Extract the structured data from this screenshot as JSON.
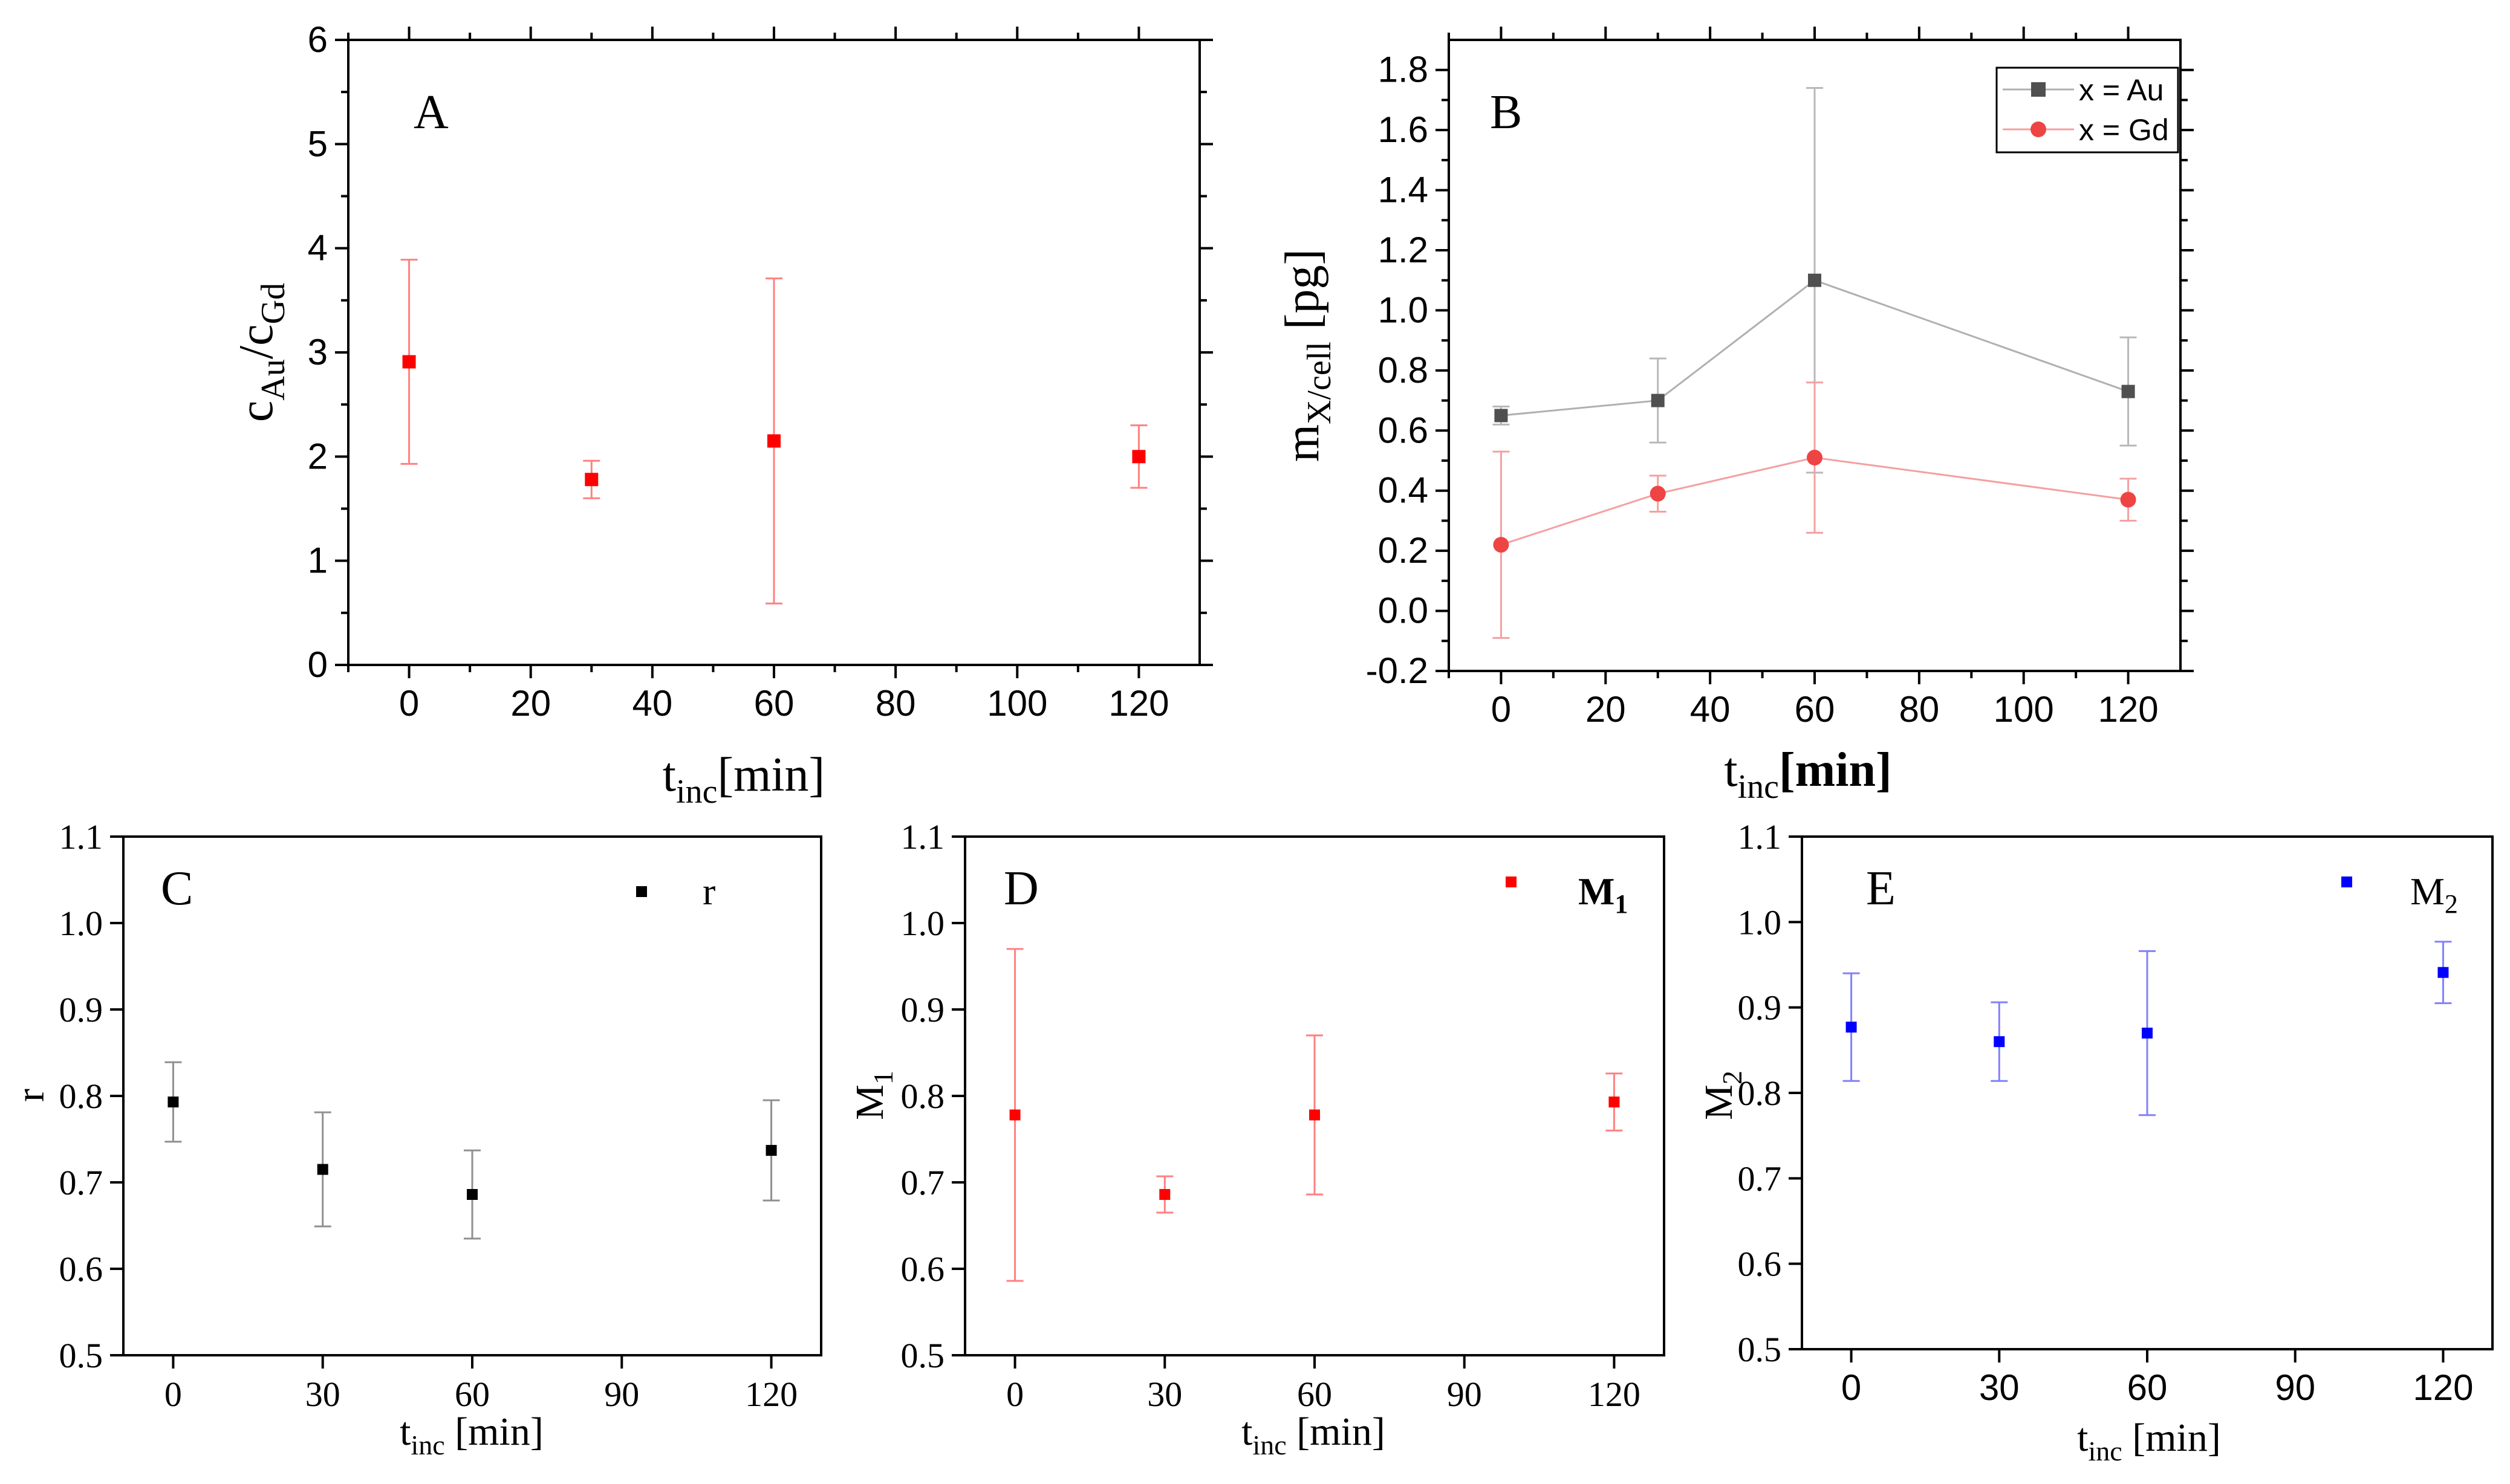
{
  "chart_data": [
    {
      "panel": "A",
      "type": "scatter",
      "xlabel": {
        "main": "t",
        "sub": "inc",
        "rest": "[min]"
      },
      "ylabel": {
        "parts": [
          {
            "t": "c"
          },
          {
            "t": "Au",
            "sub": true
          },
          {
            "t": "/c"
          },
          {
            "t": "Gd",
            "sub": true
          }
        ]
      },
      "xlim": [
        -10,
        130
      ],
      "ylim": [
        0,
        6
      ],
      "xticks": [
        0,
        20,
        40,
        60,
        80,
        100,
        120
      ],
      "yticks": [
        0,
        1,
        2,
        3,
        4,
        5,
        6
      ],
      "series": [
        {
          "color": "#ff0000",
          "errorColor": "#ff8080",
          "marker": "square",
          "line": false,
          "x": [
            0,
            30,
            60,
            120
          ],
          "y": [
            2.91,
            1.78,
            2.15,
            2.0
          ],
          "err": [
            0.98,
            0.18,
            1.56,
            0.3
          ]
        }
      ]
    },
    {
      "panel": "B",
      "type": "line",
      "xlabel": {
        "main": "t",
        "sub": "inc",
        "rest": "[min]"
      },
      "ylabel": {
        "parts": [
          {
            "t": "m"
          },
          {
            "t": "X/cell",
            "sub": true
          },
          {
            "t": " [pg]"
          }
        ]
      },
      "xlim": [
        -10,
        130
      ],
      "ylim": [
        -0.2,
        1.9
      ],
      "xticks": [
        0,
        20,
        40,
        60,
        80,
        100,
        120
      ],
      "yticks": [
        -0.2,
        0.0,
        0.2,
        0.4,
        0.6,
        0.8,
        1.0,
        1.2,
        1.4,
        1.6,
        1.8
      ],
      "legend": {
        "position": "top-right"
      },
      "series": [
        {
          "name": "x = Au",
          "color": "#505050",
          "lineColor": "#b0b0b0",
          "errorColor": "#b8b8b8",
          "marker": "square",
          "line": true,
          "x": [
            0,
            30,
            60,
            120
          ],
          "y": [
            0.65,
            0.7,
            1.1,
            0.73
          ],
          "err": [
            0.03,
            0.14,
            0.64,
            0.18
          ]
        },
        {
          "name": "x = Gd",
          "color": "#ee4444",
          "lineColor": "#f4a0a0",
          "errorColor": "#f4a0a0",
          "marker": "circle",
          "line": true,
          "x": [
            0,
            30,
            60,
            120
          ],
          "y": [
            0.22,
            0.39,
            0.51,
            0.37
          ],
          "err": [
            0.31,
            0.06,
            0.25,
            0.07
          ]
        }
      ]
    },
    {
      "panel": "C",
      "type": "scatter",
      "xlabel": {
        "main": "t",
        "sub": "inc",
        "rest": " [min]"
      },
      "ylabel": {
        "parts": [
          {
            "t": "r"
          }
        ]
      },
      "xlim": [
        -10,
        130
      ],
      "ylim": [
        0.5,
        1.1
      ],
      "xticks": [
        0,
        30,
        60,
        90,
        120
      ],
      "yticks": [
        0.5,
        0.6,
        0.7,
        0.8,
        0.9,
        1.0,
        1.1
      ],
      "legend": {
        "position": "top-right"
      },
      "series": [
        {
          "name": "r",
          "color": "#000000",
          "errorColor": "#909090",
          "marker": "square",
          "line": false,
          "x": [
            0,
            30,
            60,
            120
          ],
          "y": [
            0.793,
            0.715,
            0.686,
            0.737
          ],
          "err": [
            0.046,
            0.066,
            0.051,
            0.058
          ]
        }
      ]
    },
    {
      "panel": "D",
      "type": "scatter",
      "xlabel": {
        "main": "t",
        "sub": "inc",
        "rest": " [min]"
      },
      "ylabel": {
        "parts": [
          {
            "t": "M"
          },
          {
            "t": "1",
            "sub": true
          }
        ]
      },
      "xlim": [
        -10,
        130
      ],
      "ylim": [
        0.5,
        1.1
      ],
      "xticks": [
        0,
        30,
        60,
        90,
        120
      ],
      "yticks": [
        0.5,
        0.6,
        0.7,
        0.8,
        0.9,
        1.0,
        1.1
      ],
      "legend": {
        "position": "top-right"
      },
      "series": [
        {
          "name": "M1",
          "color": "#ff0000",
          "errorColor": "#ff8080",
          "marker": "square",
          "line": false,
          "x": [
            0,
            30,
            60,
            120
          ],
          "y": [
            0.778,
            0.686,
            0.778,
            0.793
          ],
          "err": [
            0.192,
            0.021,
            0.092,
            0.033
          ]
        }
      ]
    },
    {
      "panel": "E",
      "type": "scatter",
      "xlabel": {
        "main": "t",
        "sub": "inc",
        "rest": " [min]"
      },
      "ylabel": {
        "parts": [
          {
            "t": "M"
          },
          {
            "t": "2",
            "sub": true
          }
        ]
      },
      "xlim": [
        -10,
        130
      ],
      "ylim": [
        0.5,
        1.1
      ],
      "xticks": [
        0,
        30,
        60,
        90,
        120
      ],
      "yticks": [
        0.5,
        0.6,
        0.7,
        0.8,
        0.9,
        1.0,
        1.1
      ],
      "legend": {
        "position": "top-right"
      },
      "series": [
        {
          "name": "M2",
          "color": "#0000ff",
          "errorColor": "#8080ff",
          "marker": "square",
          "line": false,
          "x": [
            0,
            30,
            60,
            120
          ],
          "y": [
            0.877,
            0.86,
            0.87,
            0.941
          ],
          "err": [
            0.063,
            0.046,
            0.096,
            0.036
          ]
        }
      ]
    }
  ]
}
